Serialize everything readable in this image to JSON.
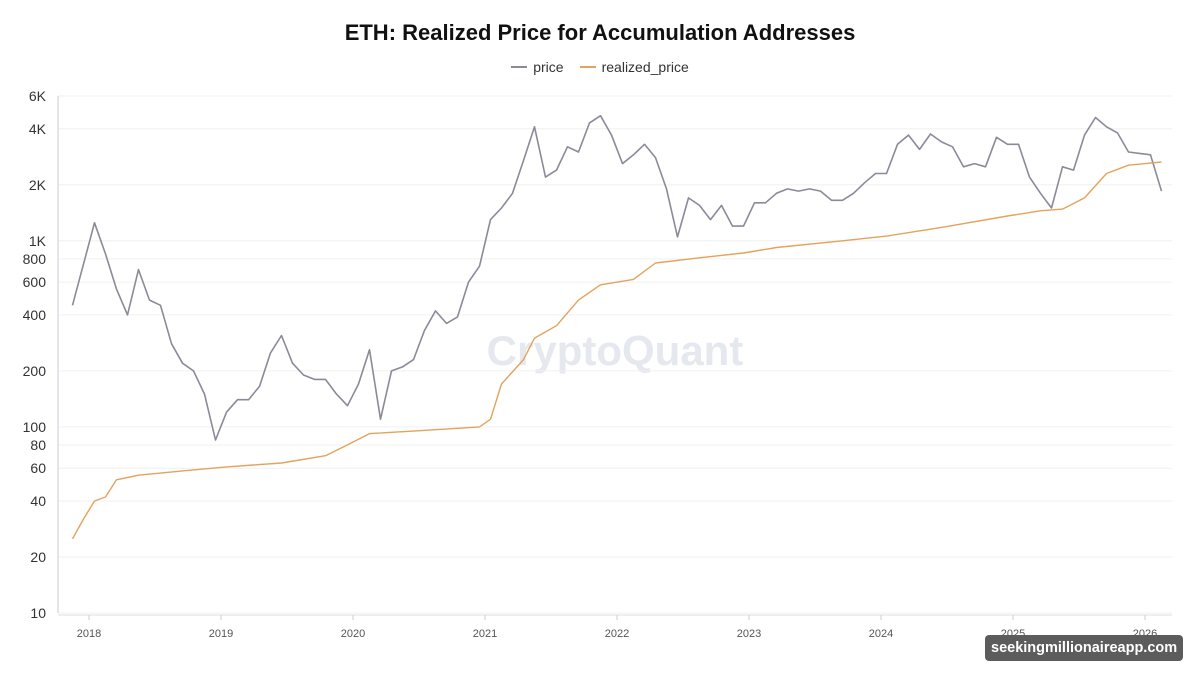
{
  "chart_data": {
    "type": "line",
    "title": "ETH: Realized Price for Accumulation Addresses",
    "legend_position": "top-center",
    "y_scale": "log",
    "ylim": [
      10,
      6000
    ],
    "y_ticks": [
      {
        "v": 10,
        "label": "10"
      },
      {
        "v": 20,
        "label": "20"
      },
      {
        "v": 40,
        "label": "40"
      },
      {
        "v": 60,
        "label": "60"
      },
      {
        "v": 80,
        "label": "80"
      },
      {
        "v": 100,
        "label": "100"
      },
      {
        "v": 200,
        "label": "200"
      },
      {
        "v": 400,
        "label": "400"
      },
      {
        "v": 600,
        "label": "600"
      },
      {
        "v": 800,
        "label": "800"
      },
      {
        "v": 1000,
        "label": "1K"
      },
      {
        "v": 2000,
        "label": "2K"
      },
      {
        "v": 4000,
        "label": "4K"
      },
      {
        "v": 6000,
        "label": "6K"
      }
    ],
    "x_ticks": [
      "2018",
      "2019",
      "2020",
      "2021",
      "2022",
      "2023",
      "2024",
      "2025",
      "2026"
    ],
    "grid": true,
    "watermark": "CryptoQuant",
    "series": [
      {
        "name": "price",
        "color": "#8a8a9a",
        "points": [
          [
            "2017-11",
            450
          ],
          [
            "2017-12",
            750
          ],
          [
            "2018-01",
            1250
          ],
          [
            "2018-02",
            850
          ],
          [
            "2018-03",
            550
          ],
          [
            "2018-04",
            400
          ],
          [
            "2018-05",
            700
          ],
          [
            "2018-06",
            480
          ],
          [
            "2018-07",
            450
          ],
          [
            "2018-08",
            280
          ],
          [
            "2018-09",
            220
          ],
          [
            "2018-10",
            200
          ],
          [
            "2018-11",
            150
          ],
          [
            "2018-12",
            85
          ],
          [
            "2019-01",
            120
          ],
          [
            "2019-02",
            140
          ],
          [
            "2019-03",
            140
          ],
          [
            "2019-04",
            165
          ],
          [
            "2019-05",
            250
          ],
          [
            "2019-06",
            310
          ],
          [
            "2019-07",
            220
          ],
          [
            "2019-08",
            190
          ],
          [
            "2019-09",
            180
          ],
          [
            "2019-10",
            180
          ],
          [
            "2019-11",
            150
          ],
          [
            "2019-12",
            130
          ],
          [
            "2020-01",
            170
          ],
          [
            "2020-02",
            260
          ],
          [
            "2020-03",
            110
          ],
          [
            "2020-04",
            200
          ],
          [
            "2020-05",
            210
          ],
          [
            "2020-06",
            230
          ],
          [
            "2020-07",
            330
          ],
          [
            "2020-08",
            420
          ],
          [
            "2020-09",
            360
          ],
          [
            "2020-10",
            390
          ],
          [
            "2020-11",
            600
          ],
          [
            "2020-12",
            730
          ],
          [
            "2021-01",
            1300
          ],
          [
            "2021-02",
            1500
          ],
          [
            "2021-03",
            1800
          ],
          [
            "2021-04",
            2700
          ],
          [
            "2021-05",
            4100
          ],
          [
            "2021-06",
            2200
          ],
          [
            "2021-07",
            2400
          ],
          [
            "2021-08",
            3200
          ],
          [
            "2021-09",
            3000
          ],
          [
            "2021-10",
            4300
          ],
          [
            "2021-11",
            4700
          ],
          [
            "2021-12",
            3700
          ],
          [
            "2022-01",
            2600
          ],
          [
            "2022-02",
            2900
          ],
          [
            "2022-03",
            3300
          ],
          [
            "2022-04",
            2800
          ],
          [
            "2022-05",
            1900
          ],
          [
            "2022-06",
            1050
          ],
          [
            "2022-07",
            1700
          ],
          [
            "2022-08",
            1550
          ],
          [
            "2022-09",
            1300
          ],
          [
            "2022-10",
            1550
          ],
          [
            "2022-11",
            1200
          ],
          [
            "2022-12",
            1200
          ],
          [
            "2023-01",
            1600
          ],
          [
            "2023-02",
            1600
          ],
          [
            "2023-03",
            1800
          ],
          [
            "2023-04",
            1900
          ],
          [
            "2023-05",
            1850
          ],
          [
            "2023-06",
            1900
          ],
          [
            "2023-07",
            1850
          ],
          [
            "2023-08",
            1650
          ],
          [
            "2023-09",
            1650
          ],
          [
            "2023-10",
            1800
          ],
          [
            "2023-11",
            2050
          ],
          [
            "2023-12",
            2300
          ],
          [
            "2024-01",
            2300
          ],
          [
            "2024-02",
            3300
          ],
          [
            "2024-03",
            3700
          ],
          [
            "2024-04",
            3100
          ],
          [
            "2024-05",
            3750
          ],
          [
            "2024-06",
            3400
          ],
          [
            "2024-07",
            3200
          ],
          [
            "2024-08",
            2500
          ],
          [
            "2024-09",
            2600
          ],
          [
            "2024-10",
            2500
          ],
          [
            "2024-11",
            3600
          ],
          [
            "2024-12",
            3300
          ],
          [
            "2025-01",
            3300
          ],
          [
            "2025-02",
            2200
          ],
          [
            "2025-03",
            1800
          ],
          [
            "2025-04",
            1500
          ],
          [
            "2025-05",
            2500
          ],
          [
            "2025-06",
            2400
          ],
          [
            "2025-07",
            3700
          ],
          [
            "2025-08",
            4600
          ],
          [
            "2025-09",
            4100
          ],
          [
            "2025-10",
            3800
          ],
          [
            "2025-11",
            3000
          ],
          [
            "2025-12",
            2950
          ],
          [
            "2026-01",
            2900
          ],
          [
            "2026-02",
            1850
          ]
        ]
      },
      {
        "name": "realized_price",
        "color": "#e3a35c",
        "points": [
          [
            "2017-11",
            25
          ],
          [
            "2017-12",
            32
          ],
          [
            "2018-01",
            40
          ],
          [
            "2018-02",
            42
          ],
          [
            "2018-03",
            52
          ],
          [
            "2018-05",
            55
          ],
          [
            "2018-09",
            58
          ],
          [
            "2019-01",
            61
          ],
          [
            "2019-06",
            64
          ],
          [
            "2019-10",
            70
          ],
          [
            "2019-12",
            80
          ],
          [
            "2020-02",
            92
          ],
          [
            "2020-06",
            95
          ],
          [
            "2020-12",
            100
          ],
          [
            "2021-01",
            110
          ],
          [
            "2021-02",
            170
          ],
          [
            "2021-04",
            230
          ],
          [
            "2021-05",
            300
          ],
          [
            "2021-07",
            350
          ],
          [
            "2021-09",
            480
          ],
          [
            "2021-11",
            580
          ],
          [
            "2022-02",
            620
          ],
          [
            "2022-04",
            760
          ],
          [
            "2022-08",
            810
          ],
          [
            "2022-12",
            860
          ],
          [
            "2023-03",
            920
          ],
          [
            "2023-09",
            1000
          ],
          [
            "2024-01",
            1060
          ],
          [
            "2024-06",
            1180
          ],
          [
            "2024-12",
            1360
          ],
          [
            "2025-03",
            1450
          ],
          [
            "2025-05",
            1480
          ],
          [
            "2025-07",
            1700
          ],
          [
            "2025-09",
            2300
          ],
          [
            "2025-11",
            2550
          ],
          [
            "2026-02",
            2650
          ]
        ]
      }
    ]
  },
  "badge": "seekingmillionaireapp.com"
}
